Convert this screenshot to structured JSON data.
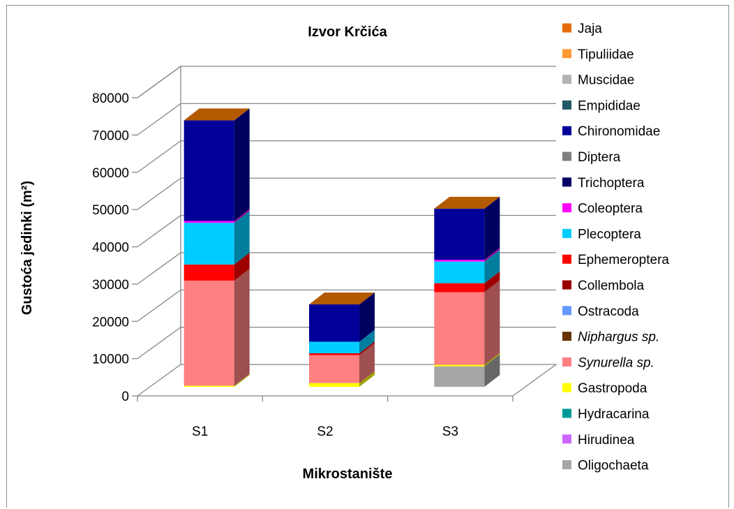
{
  "chart_data": {
    "type": "bar",
    "stacked": true,
    "three_d": true,
    "title": "Izvor Krčića",
    "xlabel": "Mikrostanište",
    "ylabel": "Gustoća jedinki (m²)",
    "ylim": [
      0,
      80000
    ],
    "yticks": [
      "0",
      "10000",
      "20000",
      "30000",
      "40000",
      "50000",
      "60000",
      "70000",
      "80000"
    ],
    "grid": true,
    "legend_position": "right",
    "categories": [
      "S1",
      "S2",
      "S3"
    ],
    "series": [
      {
        "name": "Oligochaeta",
        "color": "#a6a6a6",
        "values": [
          0,
          0,
          5500
        ]
      },
      {
        "name": "Hirudinea",
        "color": "#cc66ff",
        "values": [
          0,
          0,
          0
        ]
      },
      {
        "name": "Hydracarina",
        "color": "#009999",
        "values": [
          0,
          0,
          0
        ]
      },
      {
        "name": "Gastropoda",
        "color": "#ffff00",
        "values": [
          300,
          1000,
          400
        ]
      },
      {
        "name": "Synurella sp.",
        "color": "#ff8080",
        "italic": true,
        "values": [
          28200,
          7500,
          19500
        ]
      },
      {
        "name": "Niphargus sp.",
        "color": "#663300",
        "italic": true,
        "values": [
          0,
          0,
          0
        ]
      },
      {
        "name": "Ostracoda",
        "color": "#6699ff",
        "values": [
          0,
          0,
          0
        ]
      },
      {
        "name": "Collembola",
        "color": "#990000",
        "values": [
          0,
          0,
          0
        ]
      },
      {
        "name": "Ephemeroptera",
        "color": "#ff0000",
        "values": [
          4300,
          500,
          2400
        ]
      },
      {
        "name": "Plecoptera",
        "color": "#00ccff",
        "values": [
          11200,
          3100,
          5800
        ]
      },
      {
        "name": "Coleoptera",
        "color": "#ff00ff",
        "values": [
          500,
          0,
          500
        ]
      },
      {
        "name": "Trichoptera",
        "color": "#000066",
        "values": [
          0,
          0,
          0
        ]
      },
      {
        "name": "Diptera",
        "color": "#808080",
        "values": [
          0,
          0,
          0
        ]
      },
      {
        "name": "Chironomidae",
        "color": "#000099",
        "values": [
          27000,
          10000,
          13700
        ]
      },
      {
        "name": "Empididae",
        "color": "#215968",
        "values": [
          0,
          0,
          0
        ]
      },
      {
        "name": "Muscidae",
        "color": "#b3b3b3",
        "values": [
          0,
          0,
          0
        ]
      },
      {
        "name": "Tipuliidae",
        "color": "#ff9933",
        "values": [
          0,
          0,
          0
        ]
      },
      {
        "name": "Jaja",
        "color": "#e46c0a",
        "values": [
          0,
          0,
          0
        ]
      }
    ]
  }
}
